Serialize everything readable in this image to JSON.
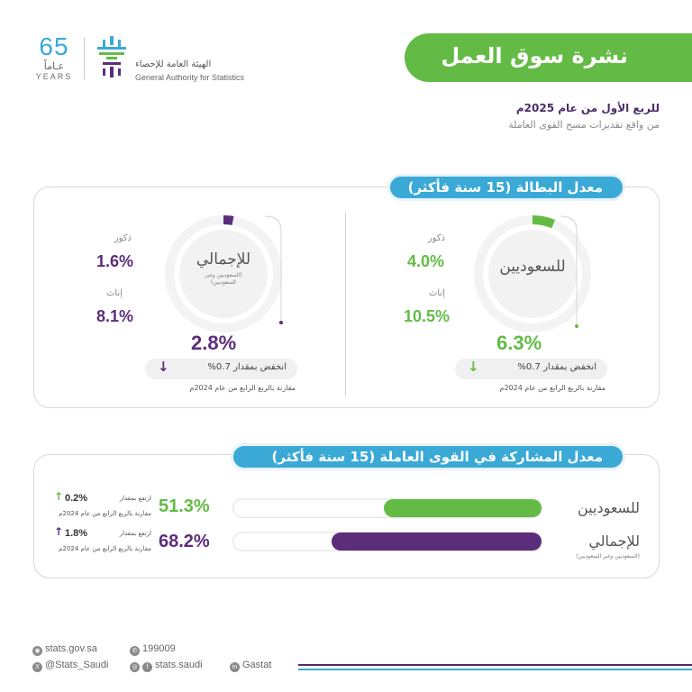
{
  "header": {
    "anniv_number": "65",
    "anniv_ar": "عـاماً",
    "anniv_en": "YEARS",
    "org_ar": "الهيئة العامة للإحصاء",
    "org_en": "General Authority for Statistics",
    "title": "نشرة سوق العمل",
    "period": "للربع الأول من عام 2025م",
    "source": "من واقع تقديرات مسح القوى العاملة"
  },
  "unemployment": {
    "section_title": "معدل البطالة (15 سنة فأكثر)",
    "saudis": {
      "label": "للسعوديين",
      "male_label": "ذكور",
      "male_value": "4.0%",
      "female_label": "إناث",
      "female_value": "10.5%",
      "total": "6.3%",
      "change_text": "انخفض بمقدار 0.7%",
      "direction": "down",
      "note": "مقارنة بالربع الرابع من عام 2024م",
      "ring_fraction": 0.063
    },
    "overall": {
      "label": "للإجمالي",
      "sub_label": "(السعوديين وغير السعوديين)",
      "male_label": "ذكور",
      "male_value": "1.6%",
      "female_label": "إناث",
      "female_value": "8.1%",
      "total": "2.8%",
      "change_text": "انخفض بمقدار 0.7%",
      "direction": "down",
      "note": "مقارنة بالربع الرابع من عام 2024م",
      "ring_fraction": 0.028
    }
  },
  "participation": {
    "section_title": "معدل المشاركة في القوى العاملة (15 سنة فأكثر)",
    "rows": [
      {
        "label": "للسعوديين",
        "sub_label": "",
        "value": "51.3%",
        "fraction": 0.513,
        "change_label": "ارتفع بمقدار",
        "change_value": "0.2%",
        "note": "مقارنة بالربع الرابع من عام 2024م",
        "color": "#63bb45"
      },
      {
        "label": "للإجمالي",
        "sub_label": "(السعوديين وغير السعوديين)",
        "value": "68.2%",
        "fraction": 0.682,
        "change_label": "ارتفع بمقدار",
        "change_value": "1.8%",
        "note": "مقارنة بالربع الرابع من عام 2024م",
        "color": "#5c2d7a"
      }
    ]
  },
  "footer": {
    "website": "stats.gov.sa",
    "phone": "199009",
    "twitter": "@Stats_Saudi",
    "social": "stats.saudi",
    "linkedin": "Gastat"
  },
  "colors": {
    "green": "#63bb45",
    "purple": "#5c2d7a",
    "blue": "#3aa9d6"
  }
}
